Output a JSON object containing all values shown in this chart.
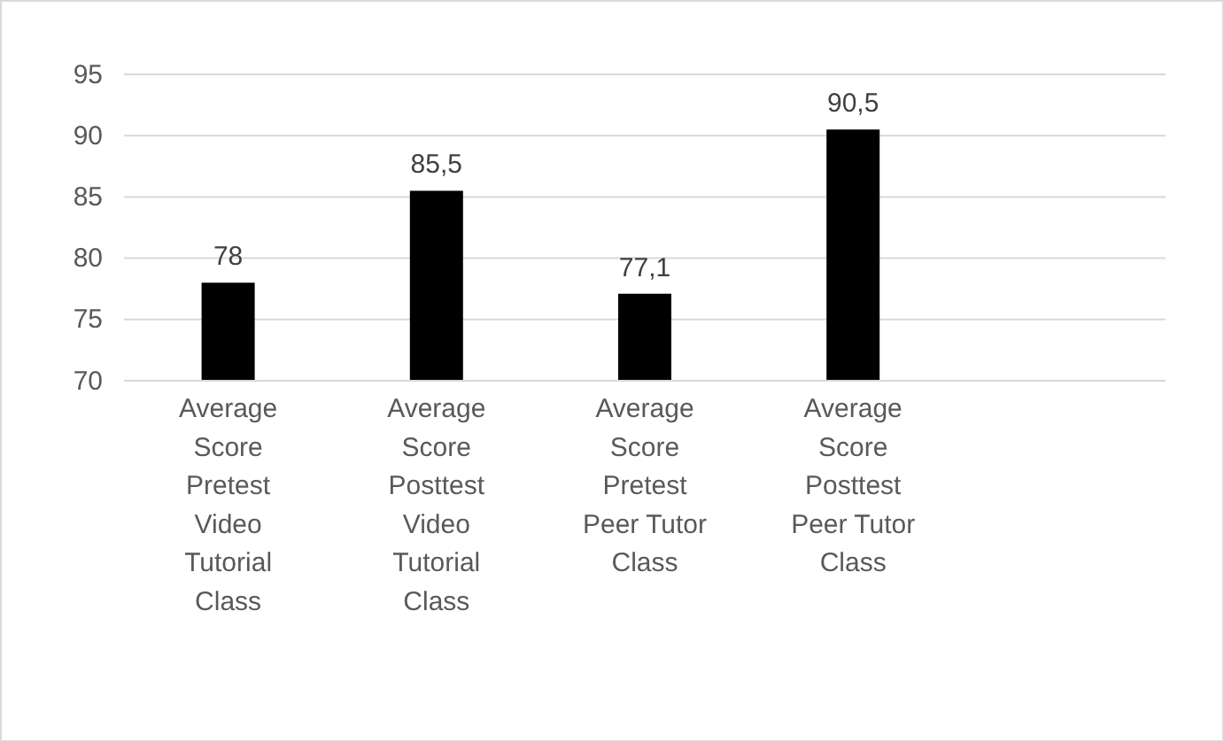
{
  "chart_data": {
    "type": "bar",
    "categories": [
      "Average Score Pretest Video Tutorial Class",
      "Average Score Posttest Video Tutorial Class",
      "Average Score Pretest Peer Tutor Class",
      "Average Score Posttest Peer Tutor Class",
      null
    ],
    "values": [
      78,
      85.5,
      77.1,
      90.5,
      null
    ],
    "value_labels": [
      "78",
      "85,5",
      "77,1",
      "90,5",
      null
    ],
    "color": "#000000",
    "ylim": [
      70,
      95
    ],
    "yticks": [
      70,
      75,
      80,
      85,
      90,
      95
    ],
    "grid": "y"
  }
}
